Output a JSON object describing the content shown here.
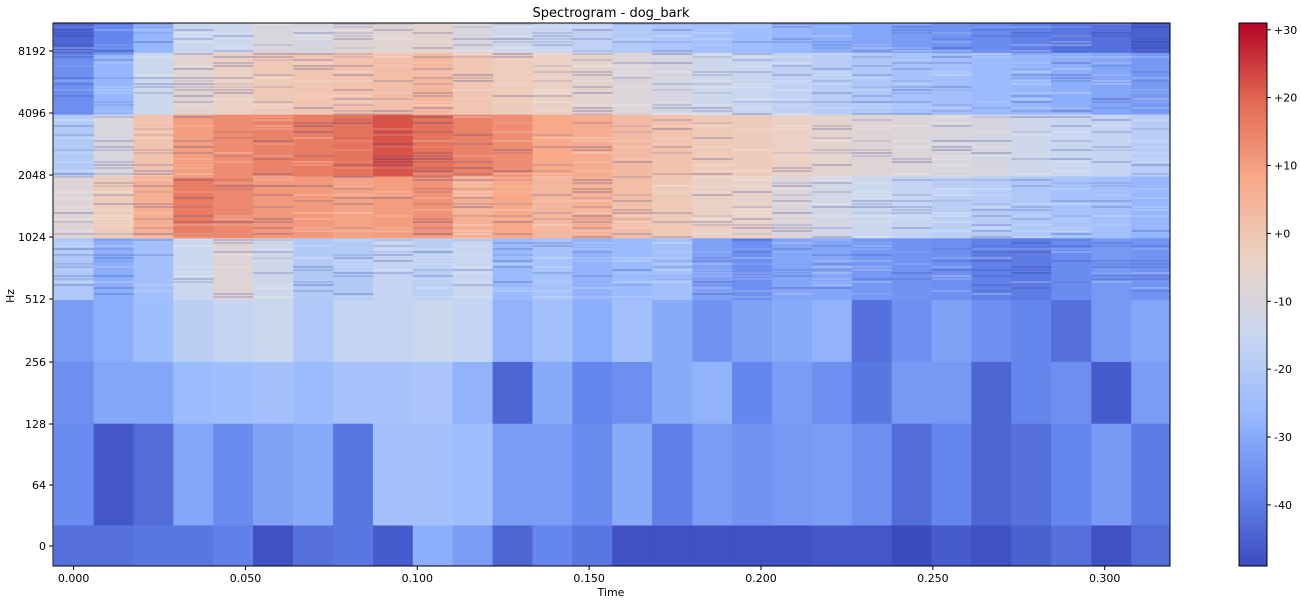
{
  "chart_data": {
    "type": "heatmap",
    "title": "Spectrogram - dog_bark",
    "xlabel": "Time",
    "ylabel": "Hz",
    "xlim": [
      -0.006,
      0.319
    ],
    "x_ticks": [
      {
        "value": 0.0,
        "label": "0.000"
      },
      {
        "value": 0.05,
        "label": "0.050"
      },
      {
        "value": 0.1,
        "label": "0.100"
      },
      {
        "value": 0.15,
        "label": "0.150"
      },
      {
        "value": 0.2,
        "label": "0.200"
      },
      {
        "value": 0.25,
        "label": "0.250"
      },
      {
        "value": 0.3,
        "label": "0.300"
      }
    ],
    "y_scale": "symlog",
    "y_ticks": [
      {
        "value": 0,
        "label": "0"
      },
      {
        "value": 64,
        "label": "64"
      },
      {
        "value": 128,
        "label": "128"
      },
      {
        "value": 256,
        "label": "256"
      },
      {
        "value": 512,
        "label": "512"
      },
      {
        "value": 1024,
        "label": "1024"
      },
      {
        "value": 2048,
        "label": "2048"
      },
      {
        "value": 4096,
        "label": "4096"
      },
      {
        "value": 8192,
        "label": "8192"
      }
    ],
    "frame_times": [
      0.0,
      0.0116,
      0.0232,
      0.0348,
      0.0464,
      0.058,
      0.0697,
      0.0813,
      0.0929,
      0.1045,
      0.1161,
      0.1277,
      0.1393,
      0.1509,
      0.1625,
      0.1741,
      0.1858,
      0.1974,
      0.209,
      0.2206,
      0.2322,
      0.2438,
      0.2554,
      0.267,
      0.2786,
      0.2902,
      0.3019,
      0.3135
    ],
    "frequency_bands_hz": [
      0,
      64,
      128,
      256,
      512,
      1024,
      2048,
      4096,
      8192,
      11025
    ],
    "energy_db": [
      [
        -42,
        -42,
        -41,
        -41,
        -39,
        -48,
        -42,
        -41,
        -46,
        -29,
        -33,
        -44,
        -38,
        -41,
        -48,
        -48,
        -48,
        -48,
        -48,
        -47,
        -47,
        -49,
        -46,
        -48,
        -45,
        -42,
        -48,
        -43
      ],
      [
        -37,
        -47,
        -43,
        -31,
        -37,
        -32,
        -30,
        -41,
        -24,
        -24,
        -25,
        -33,
        -33,
        -37,
        -30,
        -39,
        -33,
        -35,
        -34,
        -33,
        -36,
        -43,
        -38,
        -44,
        -42,
        -38,
        -34,
        -40
      ],
      [
        -36,
        -31,
        -31,
        -26,
        -25,
        -24,
        -26,
        -23,
        -23,
        -22,
        -28,
        -44,
        -30,
        -38,
        -36,
        -30,
        -28,
        -38,
        -33,
        -36,
        -41,
        -34,
        -34,
        -44,
        -38,
        -36,
        -46,
        -33
      ],
      [
        -33,
        -29,
        -25,
        -18,
        -16,
        -14,
        -21,
        -16,
        -16,
        -14,
        -16,
        -28,
        -24,
        -29,
        -24,
        -30,
        -35,
        -32,
        -30,
        -28,
        -42,
        -36,
        -32,
        -36,
        -38,
        -42,
        -34,
        -31
      ],
      [
        -21,
        -29,
        -24,
        -14,
        -8,
        -13,
        -20,
        -20,
        -16,
        -18,
        -15,
        -26,
        -23,
        -28,
        -26,
        -24,
        -32,
        -36,
        -31,
        -31,
        -34,
        -35,
        -36,
        -39,
        -40,
        -37,
        -34,
        -35
      ],
      [
        -8,
        -2,
        6,
        16,
        14,
        11,
        11,
        9,
        10,
        12,
        6,
        8,
        4,
        6,
        2,
        -1,
        -4,
        -5,
        -9,
        -12,
        -14,
        -16,
        -18,
        -19,
        -21,
        -23,
        -24,
        -27
      ],
      [
        -20,
        -10,
        1,
        10,
        13,
        15,
        16,
        18,
        22,
        18,
        15,
        13,
        8,
        7,
        3,
        1,
        -1,
        -2,
        -4,
        -6,
        -8,
        -9,
        -10,
        -11,
        -13,
        -15,
        -16,
        -19
      ],
      [
        -36,
        -27,
        -14,
        -7,
        -4,
        -1,
        0,
        1,
        2,
        4,
        0,
        -2,
        -4,
        -6,
        -9,
        -11,
        -13,
        -15,
        -17,
        -19,
        -21,
        -23,
        -24,
        -26,
        -27,
        -29,
        -31,
        -34
      ],
      [
        -44,
        -38,
        -27,
        -15,
        -14,
        -10,
        -11,
        -8,
        -7,
        -6,
        -10,
        -13,
        -15,
        -17,
        -20,
        -22,
        -24,
        -25,
        -27,
        -29,
        -31,
        -33,
        -35,
        -37,
        -39,
        -41,
        -42,
        -45
      ]
    ],
    "colorbar": {
      "range": [
        -49,
        31
      ],
      "ticks": [
        {
          "value": 30,
          "label": "+30"
        },
        {
          "value": 20,
          "label": "+20"
        },
        {
          "value": 10,
          "label": "+10"
        },
        {
          "value": 0,
          "label": "+0"
        },
        {
          "value": -10,
          "label": "-10"
        },
        {
          "value": -20,
          "label": "-20"
        },
        {
          "value": -30,
          "label": "-30"
        },
        {
          "value": -40,
          "label": "-40"
        }
      ],
      "colormap": [
        "#3b4cc0",
        "#6788ee",
        "#9abbff",
        "#c9d7f0",
        "#edd1c2",
        "#f7a889",
        "#e26952",
        "#b40426"
      ]
    },
    "grid": false
  }
}
